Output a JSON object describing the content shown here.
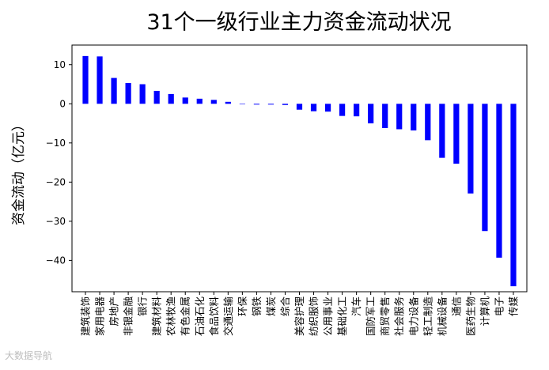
{
  "watermark": "大数据导航",
  "chart_data": {
    "type": "bar",
    "title": "31个一级行业主力资金流动状况",
    "xlabel": "",
    "ylabel": "资金流动（亿元）",
    "ylim": [
      -48,
      15
    ],
    "yticks": [
      10,
      0,
      -10,
      -20,
      -30,
      -40
    ],
    "grid": false,
    "bar_color": "#0000ff",
    "categories": [
      "建筑装饰",
      "家用电器",
      "房地产",
      "非银金融",
      "银行",
      "建筑材料",
      "农林牧渔",
      "有色金属",
      "石油石化",
      "食品饮料",
      "交通运输",
      "环保",
      "钢铁",
      "煤炭",
      "综合",
      "美容护理",
      "纺织服饰",
      "公用事业",
      "基础化工",
      "汽车",
      "国防军工",
      "商贸零售",
      "社会服务",
      "电力设备",
      "轻工制造",
      "机械设备",
      "通信",
      "医药生物",
      "计算机",
      "电子",
      "传媒"
    ],
    "values": [
      12.2,
      12.1,
      6.6,
      5.3,
      5.0,
      3.3,
      2.5,
      1.6,
      1.3,
      1.0,
      0.5,
      -0.1,
      -0.2,
      -0.2,
      -0.3,
      -1.5,
      -1.9,
      -2.0,
      -3.1,
      -3.2,
      -5.0,
      -6.2,
      -6.5,
      -6.8,
      -9.3,
      -13.8,
      -15.3,
      -22.9,
      -32.5,
      -39.3,
      -46.6
    ]
  }
}
